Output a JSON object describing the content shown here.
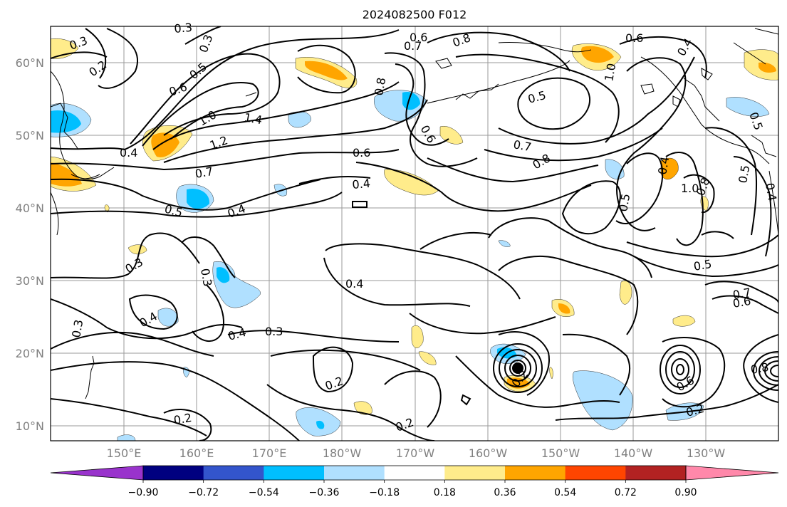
{
  "title": "2024082500 F012",
  "lat_labels": [
    "60°N",
    "50°N",
    "40°N",
    "30°N",
    "20°N",
    "10°N"
  ],
  "lon_labels": [
    "150°E",
    "160°E",
    "170°E",
    "180°W",
    "170°W",
    "160°W",
    "150°W",
    "140°W",
    "130°W"
  ],
  "colorbar": {
    "tick_labels": [
      "−0.90",
      "−0.72",
      "−0.54",
      "−0.36",
      "−0.18",
      "0.18",
      "0.36",
      "0.54",
      "0.72",
      "0.90"
    ],
    "colors": [
      "#9933cc",
      "#000080",
      "#3355cc",
      "#00bfff",
      "#b0e0ff",
      "#ffffff",
      "#ffec8b",
      "#ffa500",
      "#ff4500",
      "#b22222",
      "#ff88aa"
    ]
  },
  "contour_labels": [
    "0.3",
    "0.3",
    "0.3",
    "0.6",
    "0.7",
    "0.8",
    "0.6",
    "0.4",
    "0.2",
    "0.6",
    "0.5",
    "1.0",
    "1.4",
    "1.2",
    "0.4",
    "0.7",
    "0.8",
    "0.6",
    "0.5",
    "0.7",
    "0.8",
    "1.0",
    "0.4",
    "0.6",
    "0.4",
    "0.5",
    "0.4",
    "0.5",
    "1.0",
    "0.8",
    "0.5",
    "0.4",
    "0.3",
    "0.3",
    "0.4",
    "0.4",
    "0.4",
    "0.3",
    "0.3",
    "0.2",
    "0.2",
    "0.2",
    "0.2",
    "0.5",
    "0.7",
    "0.6",
    "0.2",
    "0.6",
    "0.5",
    "0.8"
  ],
  "legend_markers": {
    "storm": "storm-center-marker"
  }
}
